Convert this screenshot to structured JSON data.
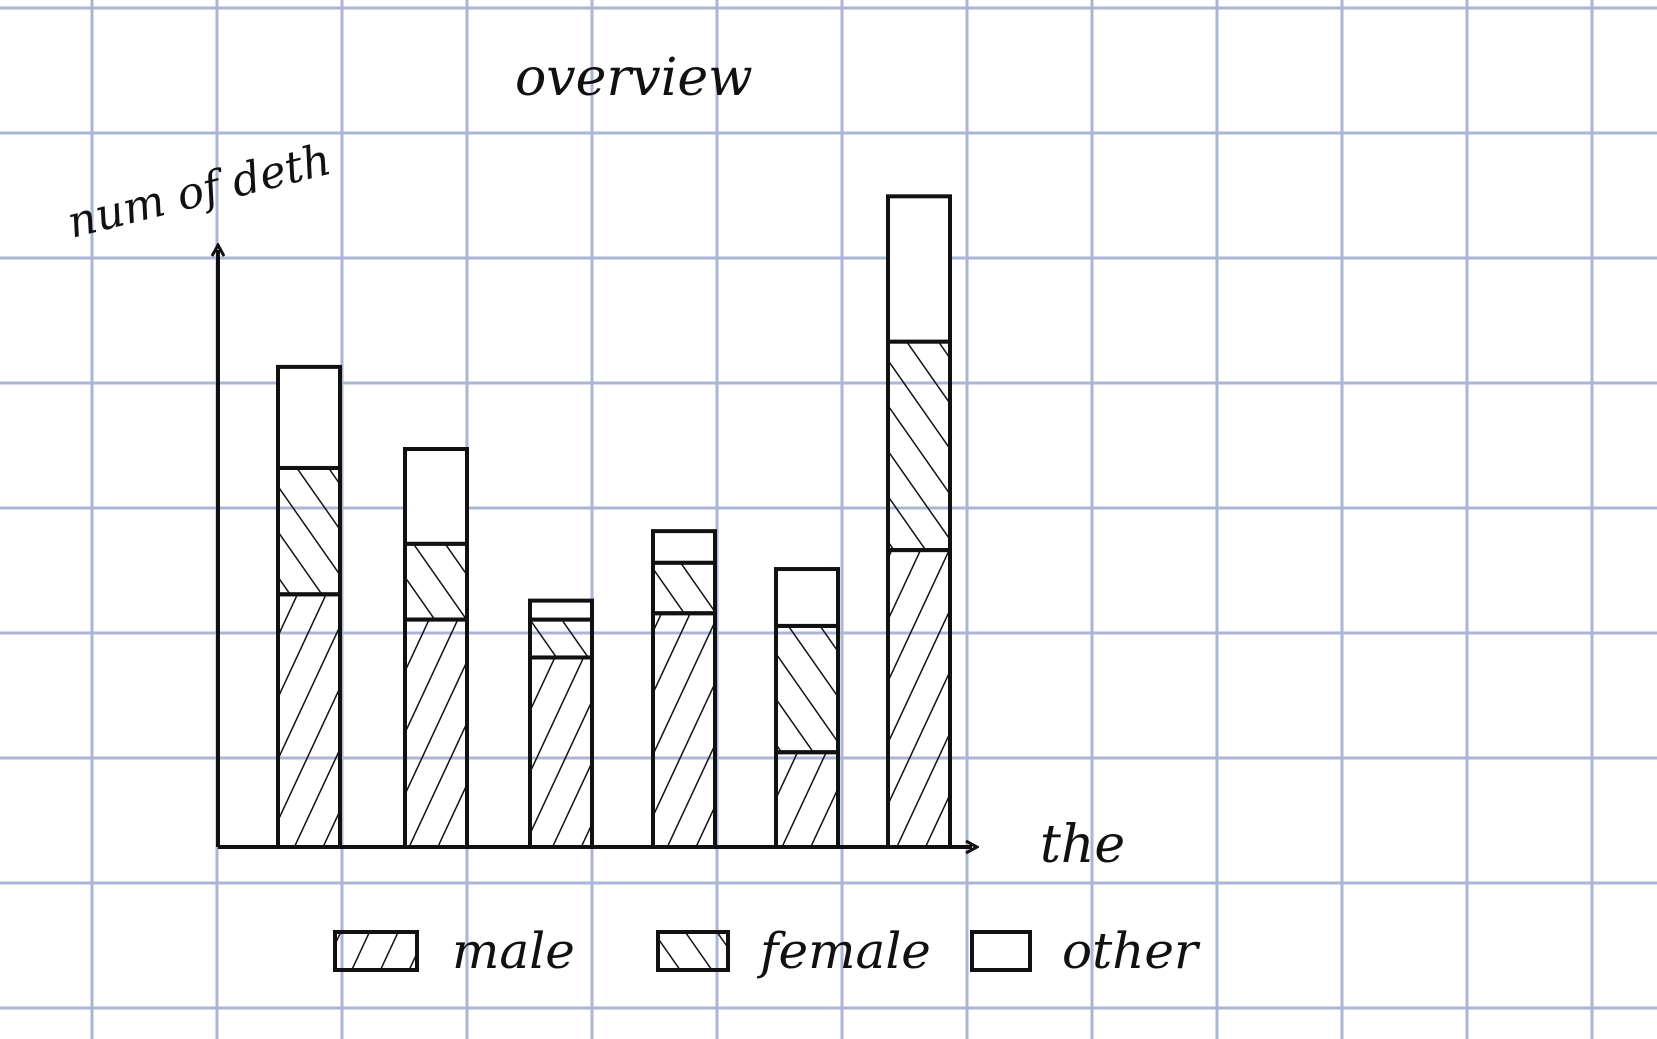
{
  "chart_data": {
    "type": "bar",
    "stacked": true,
    "title": "overview",
    "xlabel": "the",
    "ylabel": "num of deth",
    "categories": [
      "",
      "",
      "",
      "",
      "",
      ""
    ],
    "series": [
      {
        "name": "male",
        "hatch": "male-hatch",
        "values": [
          20,
          18,
          15,
          18.5,
          7.5,
          23.5
        ]
      },
      {
        "name": "female",
        "hatch": "female-hatch",
        "values": [
          10,
          6,
          3,
          4,
          10,
          16.5
        ]
      },
      {
        "name": "other",
        "hatch": "none",
        "values": [
          8,
          7.5,
          1.5,
          2.5,
          4.5,
          11.5
        ]
      }
    ],
    "ylim": [
      0,
      52
    ],
    "grid": true,
    "legend": "bottom",
    "colors": {
      "grid": "#aab6d3",
      "ink": "#111111",
      "background": "#ffffff"
    }
  }
}
